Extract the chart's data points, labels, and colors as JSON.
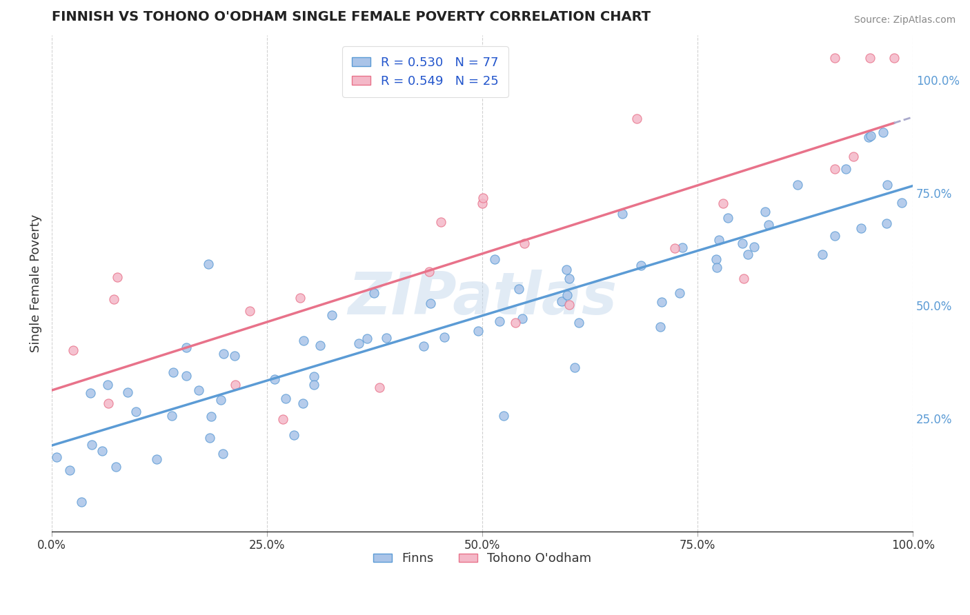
{
  "title": "FINNISH VS TOHONO O'ODHAM SINGLE FEMALE POVERTY CORRELATION CHART",
  "source": "Source: ZipAtlas.com",
  "ylabel": "Single Female Poverty",
  "watermark": "ZIPatlas",
  "series": [
    {
      "name": "Finns",
      "R": 0.53,
      "N": 77,
      "color": "#aac4e8",
      "line_color": "#5b9bd5"
    },
    {
      "name": "Tohono O'odham",
      "R": 0.549,
      "N": 25,
      "color": "#f4b8c8",
      "line_color": "#e8728a"
    }
  ],
  "background_color": "#ffffff",
  "grid_color": "#cccccc",
  "right_yticks": [
    0.25,
    0.5,
    0.75,
    1.0
  ],
  "right_yticklabels": [
    "25.0%",
    "50.0%",
    "75.0%",
    "100.0%"
  ],
  "xticklabels": [
    "0.0%",
    "25.0%",
    "50.0%",
    "75.0%",
    "100.0%"
  ],
  "xticks": [
    0.0,
    0.25,
    0.5,
    0.75,
    1.0
  ]
}
